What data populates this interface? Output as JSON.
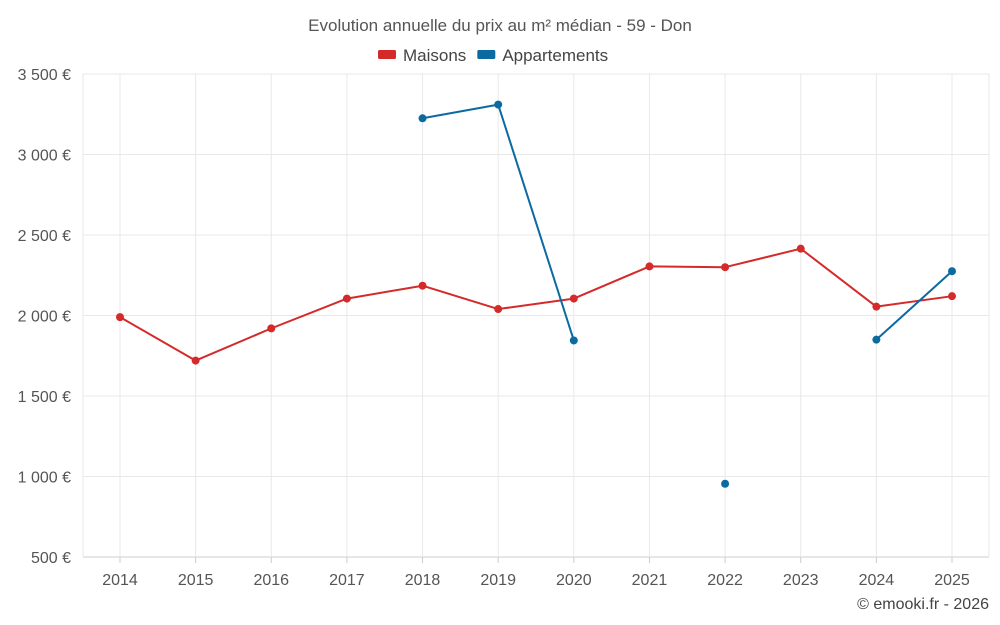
{
  "chart_data": {
    "type": "line",
    "title": "Evolution annuelle du prix au m² médian - 59 - Don",
    "categories": [
      "2014",
      "2015",
      "2016",
      "2017",
      "2018",
      "2019",
      "2020",
      "2021",
      "2022",
      "2023",
      "2024",
      "2025"
    ],
    "series": [
      {
        "name": "Maisons",
        "color": "#d42a2a",
        "values": [
          1990,
          1720,
          1920,
          2105,
          2185,
          2040,
          2105,
          2305,
          2300,
          2415,
          2055,
          2120
        ]
      },
      {
        "name": "Appartements",
        "color": "#0a6aa1",
        "values": [
          null,
          null,
          null,
          null,
          3225,
          3310,
          1845,
          null,
          955,
          null,
          1850,
          2275
        ]
      }
    ],
    "ylim": [
      500,
      3500
    ],
    "yticks": [
      500,
      1000,
      1500,
      2000,
      2500,
      3000,
      3500
    ],
    "ytick_labels": [
      "500 €",
      "1 000 €",
      "1 500 €",
      "2 000 €",
      "2 500 €",
      "3 000 €",
      "3 500 €"
    ],
    "xlabel": "",
    "ylabel": "",
    "grid": true,
    "legend_position": "top-center"
  },
  "credit": "© emooki.fr - 2026"
}
